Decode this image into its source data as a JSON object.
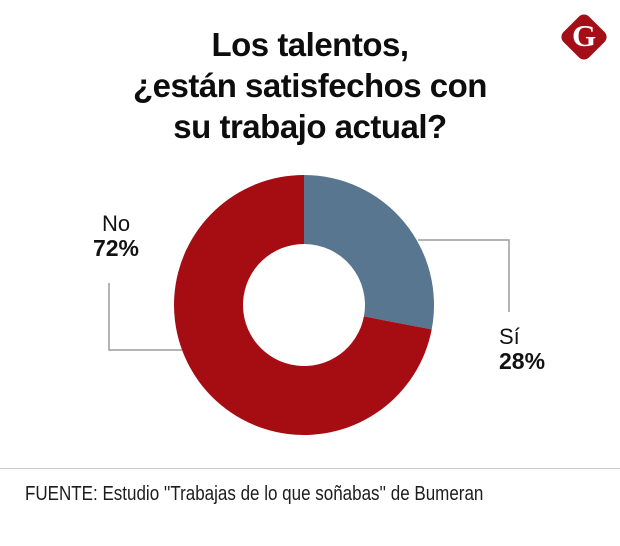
{
  "title": {
    "lines": [
      "Los talentos,",
      "¿están satisfechos con",
      "su trabajo actual?"
    ]
  },
  "logo": {
    "letter": "G",
    "bg_color": "#a40e16"
  },
  "chart_data": {
    "type": "pie",
    "variant": "donut",
    "title": "Los talentos, ¿están satisfechos con su trabajo actual?",
    "start_angle_deg": -90,
    "direction": "clockwise",
    "inner_radius_ratio": 0.47,
    "legend_position": "callouts",
    "segments": [
      {
        "label": "Sí",
        "value": 28,
        "value_label": "28%",
        "color": "#587690"
      },
      {
        "label": "No",
        "value": 72,
        "value_label": "72%",
        "color": "#a60d13"
      }
    ]
  },
  "footer": {
    "source": "FUENTE: Estudio ''Trabajas de lo que soñabas'' de Bumeran"
  },
  "colors": {
    "callout_line": "#9b9b9b",
    "divider": "#cccccc",
    "title_text": "#0d0d0d"
  }
}
